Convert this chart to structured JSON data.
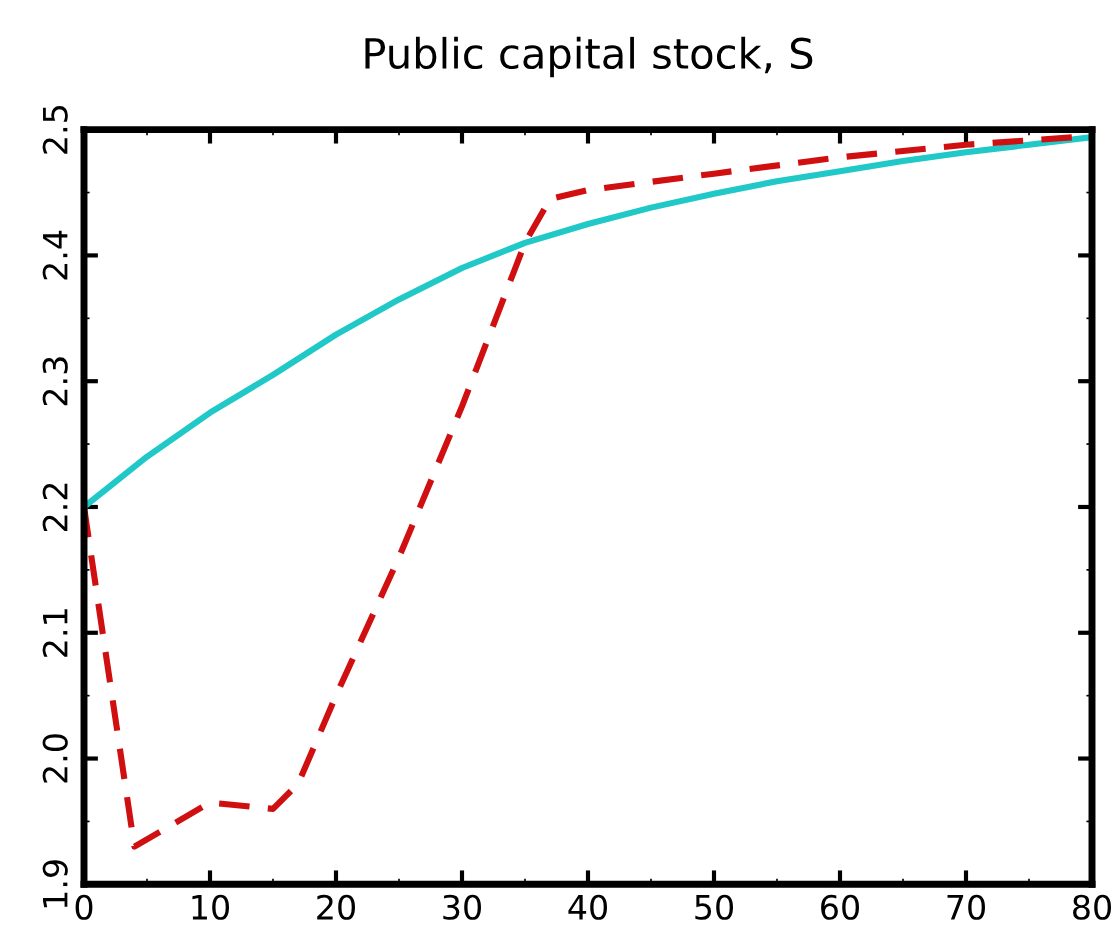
{
  "chart_data": {
    "type": "line",
    "title": "Public capital stock, S",
    "xlim": [
      0,
      80
    ],
    "xticks": [
      0,
      10,
      20,
      30,
      40,
      50,
      60,
      70,
      80
    ],
    "ylim": [
      1.9,
      2.5
    ],
    "yticks": [
      {
        "value": 1.9,
        "label": "1.9"
      },
      {
        "value": 2.0,
        "label": "2.0"
      },
      {
        "value": 2.1,
        "label": "2.1"
      },
      {
        "value": 2.2,
        "label": "2.2"
      },
      {
        "value": 2.3,
        "label": "2.3"
      },
      {
        "value": 2.4,
        "label": "2.4"
      },
      {
        "value": 2.5,
        "label": "2.5"
      }
    ],
    "grid": false,
    "legend": false,
    "series": [
      {
        "color": "#20c8c8",
        "line_style": "solid",
        "x": [
          0,
          5,
          10,
          15,
          20,
          25,
          30,
          35,
          40,
          45,
          50,
          55,
          60,
          65,
          70,
          75,
          80
        ],
        "values": [
          2.2,
          2.24,
          2.275,
          2.305,
          2.337,
          2.365,
          2.39,
          2.41,
          2.425,
          2.438,
          2.449,
          2.459,
          2.467,
          2.475,
          2.482,
          2.488,
          2.494
        ]
      },
      {
        "color": "#d01010",
        "line_style": "dashed",
        "x": [
          0,
          4,
          10,
          15,
          17,
          20,
          25,
          30,
          35,
          37,
          40,
          50,
          60,
          70,
          80
        ],
        "values": [
          2.2,
          1.93,
          1.965,
          1.96,
          1.98,
          2.05,
          2.16,
          2.28,
          2.41,
          2.445,
          2.452,
          2.465,
          2.478,
          2.488,
          2.495
        ]
      }
    ]
  }
}
